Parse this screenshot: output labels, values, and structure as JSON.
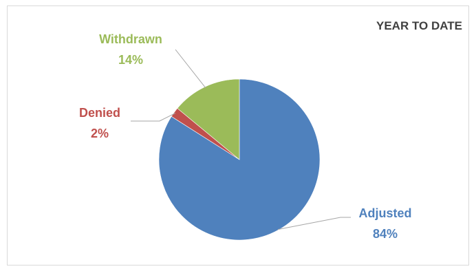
{
  "chart_data": {
    "type": "pie",
    "title": "YEAR TO DATE",
    "slices": [
      {
        "label": "Adjusted",
        "value": 84,
        "value_label": "84%",
        "color": "#4f81bd"
      },
      {
        "label": "Denied",
        "value": 2,
        "value_label": "2%",
        "color": "#c0504d"
      },
      {
        "label": "Withdrawn",
        "value": 14,
        "value_label": "14%",
        "color": "#9bbb59"
      }
    ],
    "start_angle_deg": 0,
    "direction": "clockwise",
    "legend": "none",
    "border_color": "#d9d9d9",
    "leader_line_color": "#a6a6a6"
  }
}
